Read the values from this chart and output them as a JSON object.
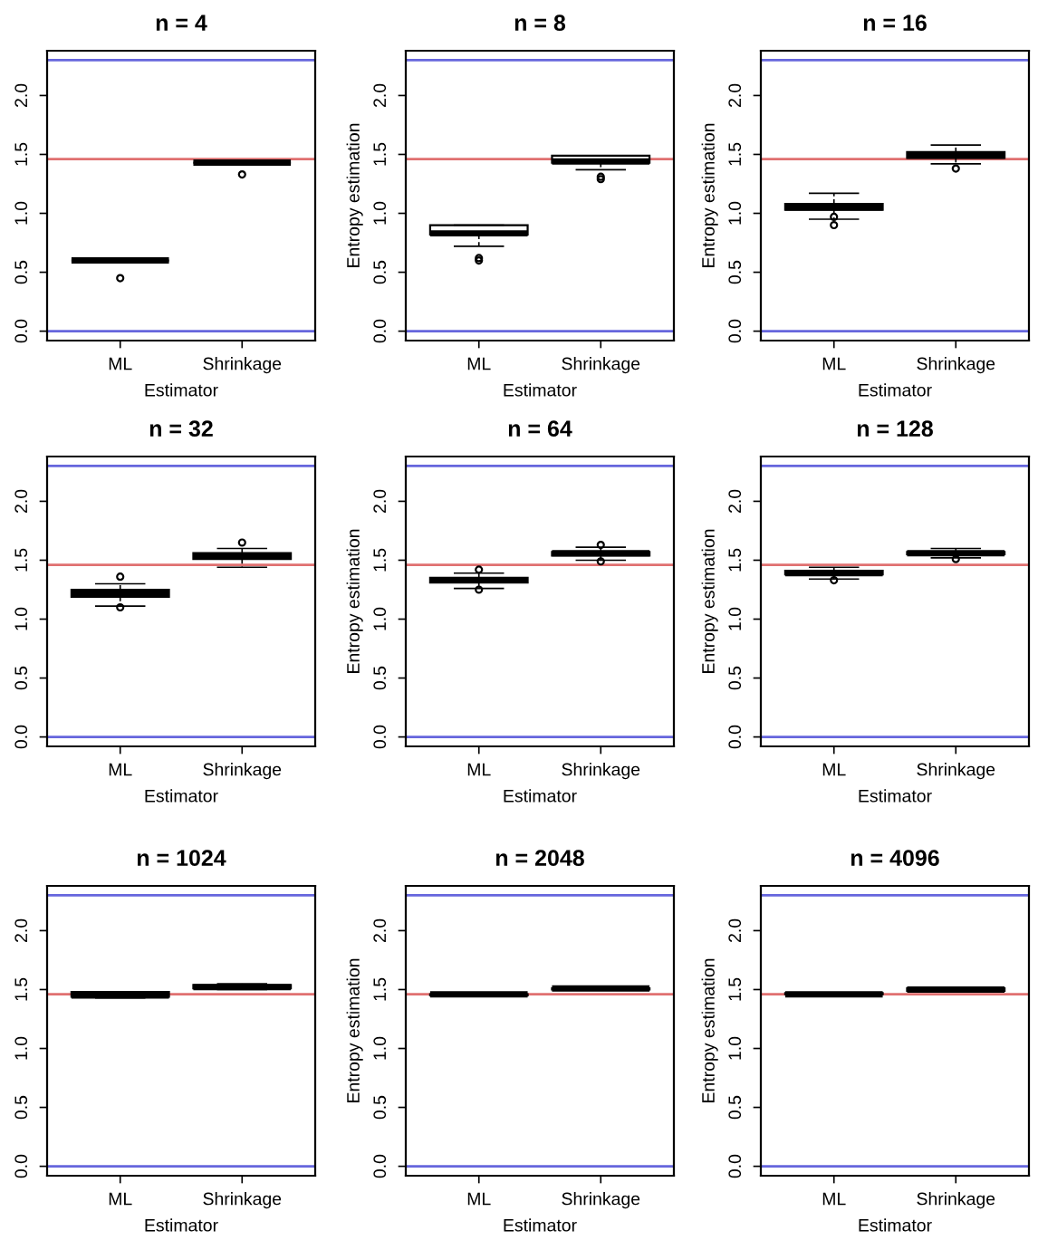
{
  "chart_data": [
    {
      "type": "box",
      "title": "n = 4",
      "xlabel": "Estimator",
      "categories": [
        "ML",
        "Shrinkage"
      ],
      "boxes": [
        {
          "low": 0.6,
          "q1": 0.6,
          "median": 0.6,
          "q3": 0.6,
          "high": 0.6,
          "outliers": [
            0.45
          ]
        },
        {
          "low": 1.43,
          "q1": 1.43,
          "median": 1.43,
          "q3": 1.43,
          "high": 1.43,
          "outliers": [
            1.33
          ]
        }
      ],
      "ylim": [
        -0.08,
        2.38
      ],
      "yticks": [
        {
          "value": 0,
          "label": "0.0"
        },
        {
          "value": 0.5,
          "label": "0.5"
        },
        {
          "value": 1,
          "label": "1.0"
        },
        {
          "value": 1.5,
          "label": "1.5"
        },
        {
          "value": 2,
          "label": "2.0"
        }
      ],
      "ref_lines": [
        {
          "axis": "y",
          "value": 0,
          "color": "#6666dd"
        },
        {
          "axis": "y",
          "value": 2.3,
          "color": "#6666dd"
        },
        {
          "axis": "y",
          "value": 1.46,
          "color": "#e07070"
        }
      ],
      "grid": false
    },
    {
      "type": "box",
      "title": "n = 8",
      "xlabel": "Estimator",
      "ylabel": "Entropy estimation",
      "categories": [
        "ML",
        "Shrinkage"
      ],
      "boxes": [
        {
          "low": 0.72,
          "q1": 0.82,
          "median": 0.83,
          "q3": 0.9,
          "high": 0.9,
          "outliers": [
            0.62,
            0.6
          ]
        },
        {
          "low": 1.37,
          "q1": 1.43,
          "median": 1.44,
          "q3": 1.49,
          "high": 1.49,
          "outliers": [
            1.31,
            1.29
          ]
        }
      ],
      "ylim": [
        -0.08,
        2.38
      ],
      "yticks": [
        {
          "value": 0,
          "label": "0.0"
        },
        {
          "value": 0.5,
          "label": "0.5"
        },
        {
          "value": 1,
          "label": "1.0"
        },
        {
          "value": 1.5,
          "label": "1.5"
        },
        {
          "value": 2,
          "label": "2.0"
        }
      ],
      "ref_lines": [
        {
          "axis": "y",
          "value": 0,
          "color": "#6666dd"
        },
        {
          "axis": "y",
          "value": 2.3,
          "color": "#6666dd"
        },
        {
          "axis": "y",
          "value": 1.46,
          "color": "#e07070"
        }
      ],
      "grid": false
    },
    {
      "type": "box",
      "title": "n = 16",
      "xlabel": "Estimator",
      "ylabel": "Entropy estimation",
      "categories": [
        "ML",
        "Shrinkage"
      ],
      "boxes": [
        {
          "low": 0.95,
          "q1": 1.03,
          "median": 1.05,
          "q3": 1.08,
          "high": 1.17,
          "outliers": [
            0.97,
            0.9
          ]
        },
        {
          "low": 1.42,
          "q1": 1.47,
          "median": 1.49,
          "q3": 1.52,
          "high": 1.58,
          "outliers": [
            1.38
          ]
        }
      ],
      "ylim": [
        -0.08,
        2.38
      ],
      "yticks": [
        {
          "value": 0,
          "label": "0.0"
        },
        {
          "value": 0.5,
          "label": "0.5"
        },
        {
          "value": 1,
          "label": "1.0"
        },
        {
          "value": 1.5,
          "label": "1.5"
        },
        {
          "value": 2,
          "label": "2.0"
        }
      ],
      "ref_lines": [
        {
          "axis": "y",
          "value": 0,
          "color": "#6666dd"
        },
        {
          "axis": "y",
          "value": 2.3,
          "color": "#6666dd"
        },
        {
          "axis": "y",
          "value": 1.46,
          "color": "#e07070"
        }
      ],
      "grid": false
    },
    {
      "type": "box",
      "title": "n = 32",
      "xlabel": "Estimator",
      "categories": [
        "ML",
        "Shrinkage"
      ],
      "boxes": [
        {
          "low": 1.11,
          "q1": 1.19,
          "median": 1.22,
          "q3": 1.25,
          "high": 1.3,
          "outliers": [
            1.36,
            1.1
          ]
        },
        {
          "low": 1.44,
          "q1": 1.51,
          "median": 1.53,
          "q3": 1.56,
          "high": 1.6,
          "outliers": [
            1.65
          ]
        }
      ],
      "ylim": [
        -0.08,
        2.38
      ],
      "yticks": [
        {
          "value": 0,
          "label": "0.0"
        },
        {
          "value": 0.5,
          "label": "0.5"
        },
        {
          "value": 1,
          "label": "1.0"
        },
        {
          "value": 1.5,
          "label": "1.5"
        },
        {
          "value": 2,
          "label": "2.0"
        }
      ],
      "ref_lines": [
        {
          "axis": "y",
          "value": 0,
          "color": "#6666dd"
        },
        {
          "axis": "y",
          "value": 2.3,
          "color": "#6666dd"
        },
        {
          "axis": "y",
          "value": 1.46,
          "color": "#e07070"
        }
      ],
      "grid": false
    },
    {
      "type": "box",
      "title": "n = 64",
      "xlabel": "Estimator",
      "ylabel": "Entropy estimation",
      "categories": [
        "ML",
        "Shrinkage"
      ],
      "boxes": [
        {
          "low": 1.26,
          "q1": 1.31,
          "median": 1.33,
          "q3": 1.35,
          "high": 1.39,
          "outliers": [
            1.42,
            1.25
          ]
        },
        {
          "low": 1.5,
          "q1": 1.54,
          "median": 1.56,
          "q3": 1.57,
          "high": 1.61,
          "outliers": [
            1.63,
            1.49
          ]
        }
      ],
      "ylim": [
        -0.08,
        2.38
      ],
      "yticks": [
        {
          "value": 0,
          "label": "0.0"
        },
        {
          "value": 0.5,
          "label": "0.5"
        },
        {
          "value": 1,
          "label": "1.0"
        },
        {
          "value": 1.5,
          "label": "1.5"
        },
        {
          "value": 2,
          "label": "2.0"
        }
      ],
      "ref_lines": [
        {
          "axis": "y",
          "value": 0,
          "color": "#6666dd"
        },
        {
          "axis": "y",
          "value": 2.3,
          "color": "#6666dd"
        },
        {
          "axis": "y",
          "value": 1.46,
          "color": "#e07070"
        }
      ],
      "grid": false
    },
    {
      "type": "box",
      "title": "n = 128",
      "xlabel": "Estimator",
      "ylabel": "Entropy estimation",
      "categories": [
        "ML",
        "Shrinkage"
      ],
      "boxes": [
        {
          "low": 1.34,
          "q1": 1.38,
          "median": 1.39,
          "q3": 1.41,
          "high": 1.44,
          "outliers": [
            1.33
          ]
        },
        {
          "low": 1.52,
          "q1": 1.55,
          "median": 1.56,
          "q3": 1.57,
          "high": 1.6,
          "outliers": [
            1.51
          ]
        }
      ],
      "ylim": [
        -0.08,
        2.38
      ],
      "yticks": [
        {
          "value": 0,
          "label": "0.0"
        },
        {
          "value": 0.5,
          "label": "0.5"
        },
        {
          "value": 1,
          "label": "1.0"
        },
        {
          "value": 1.5,
          "label": "1.5"
        },
        {
          "value": 2,
          "label": "2.0"
        }
      ],
      "ref_lines": [
        {
          "axis": "y",
          "value": 0,
          "color": "#6666dd"
        },
        {
          "axis": "y",
          "value": 2.3,
          "color": "#6666dd"
        },
        {
          "axis": "y",
          "value": 1.46,
          "color": "#e07070"
        }
      ],
      "grid": false
    },
    {
      "type": "box",
      "title": "n = 1024",
      "xlabel": "Estimator",
      "categories": [
        "ML",
        "Shrinkage"
      ],
      "boxes": [
        {
          "low": 1.43,
          "q1": 1.44,
          "median": 1.45,
          "q3": 1.48,
          "high": 1.48
        },
        {
          "low": 1.5,
          "q1": 1.51,
          "median": 1.52,
          "q3": 1.54,
          "high": 1.55
        }
      ],
      "ylim": [
        -0.08,
        2.38
      ],
      "yticks": [
        {
          "value": 0,
          "label": "0.0"
        },
        {
          "value": 0.5,
          "label": "0.5"
        },
        {
          "value": 1,
          "label": "1.0"
        },
        {
          "value": 1.5,
          "label": "1.5"
        },
        {
          "value": 2,
          "label": "2.0"
        }
      ],
      "ref_lines": [
        {
          "axis": "y",
          "value": 0,
          "color": "#6666dd"
        },
        {
          "axis": "y",
          "value": 2.3,
          "color": "#6666dd"
        },
        {
          "axis": "y",
          "value": 1.46,
          "color": "#e07070"
        }
      ],
      "grid": false
    },
    {
      "type": "box",
      "title": "n = 2048",
      "xlabel": "Estimator",
      "ylabel": "Entropy estimation",
      "categories": [
        "ML",
        "Shrinkage"
      ],
      "boxes": [
        {
          "low": 1.45,
          "q1": 1.45,
          "median": 1.46,
          "q3": 1.46,
          "high": 1.47
        },
        {
          "low": 1.5,
          "q1": 1.5,
          "median": 1.51,
          "q3": 1.51,
          "high": 1.52
        }
      ],
      "ylim": [
        -0.08,
        2.38
      ],
      "yticks": [
        {
          "value": 0,
          "label": "0.0"
        },
        {
          "value": 0.5,
          "label": "0.5"
        },
        {
          "value": 1,
          "label": "1.0"
        },
        {
          "value": 1.5,
          "label": "1.5"
        },
        {
          "value": 2,
          "label": "2.0"
        }
      ],
      "ref_lines": [
        {
          "axis": "y",
          "value": 0,
          "color": "#6666dd"
        },
        {
          "axis": "y",
          "value": 2.3,
          "color": "#6666dd"
        },
        {
          "axis": "y",
          "value": 1.46,
          "color": "#e07070"
        }
      ],
      "grid": false
    },
    {
      "type": "box",
      "title": "n = 4096",
      "xlabel": "Estimator",
      "ylabel": "Entropy estimation",
      "categories": [
        "ML",
        "Shrinkage"
      ],
      "boxes": [
        {
          "low": 1.45,
          "q1": 1.46,
          "median": 1.46,
          "q3": 1.47,
          "high": 1.47
        },
        {
          "low": 1.49,
          "q1": 1.49,
          "median": 1.5,
          "q3": 1.51,
          "high": 1.51
        }
      ],
      "ylim": [
        -0.08,
        2.38
      ],
      "yticks": [
        {
          "value": 0,
          "label": "0.0"
        },
        {
          "value": 0.5,
          "label": "0.5"
        },
        {
          "value": 1,
          "label": "1.0"
        },
        {
          "value": 1.5,
          "label": "1.5"
        },
        {
          "value": 2,
          "label": "2.0"
        }
      ],
      "ref_lines": [
        {
          "axis": "y",
          "value": 0,
          "color": "#6666dd"
        },
        {
          "axis": "y",
          "value": 2.3,
          "color": "#6666dd"
        },
        {
          "axis": "y",
          "value": 1.46,
          "color": "#e07070"
        }
      ],
      "grid": false
    }
  ]
}
